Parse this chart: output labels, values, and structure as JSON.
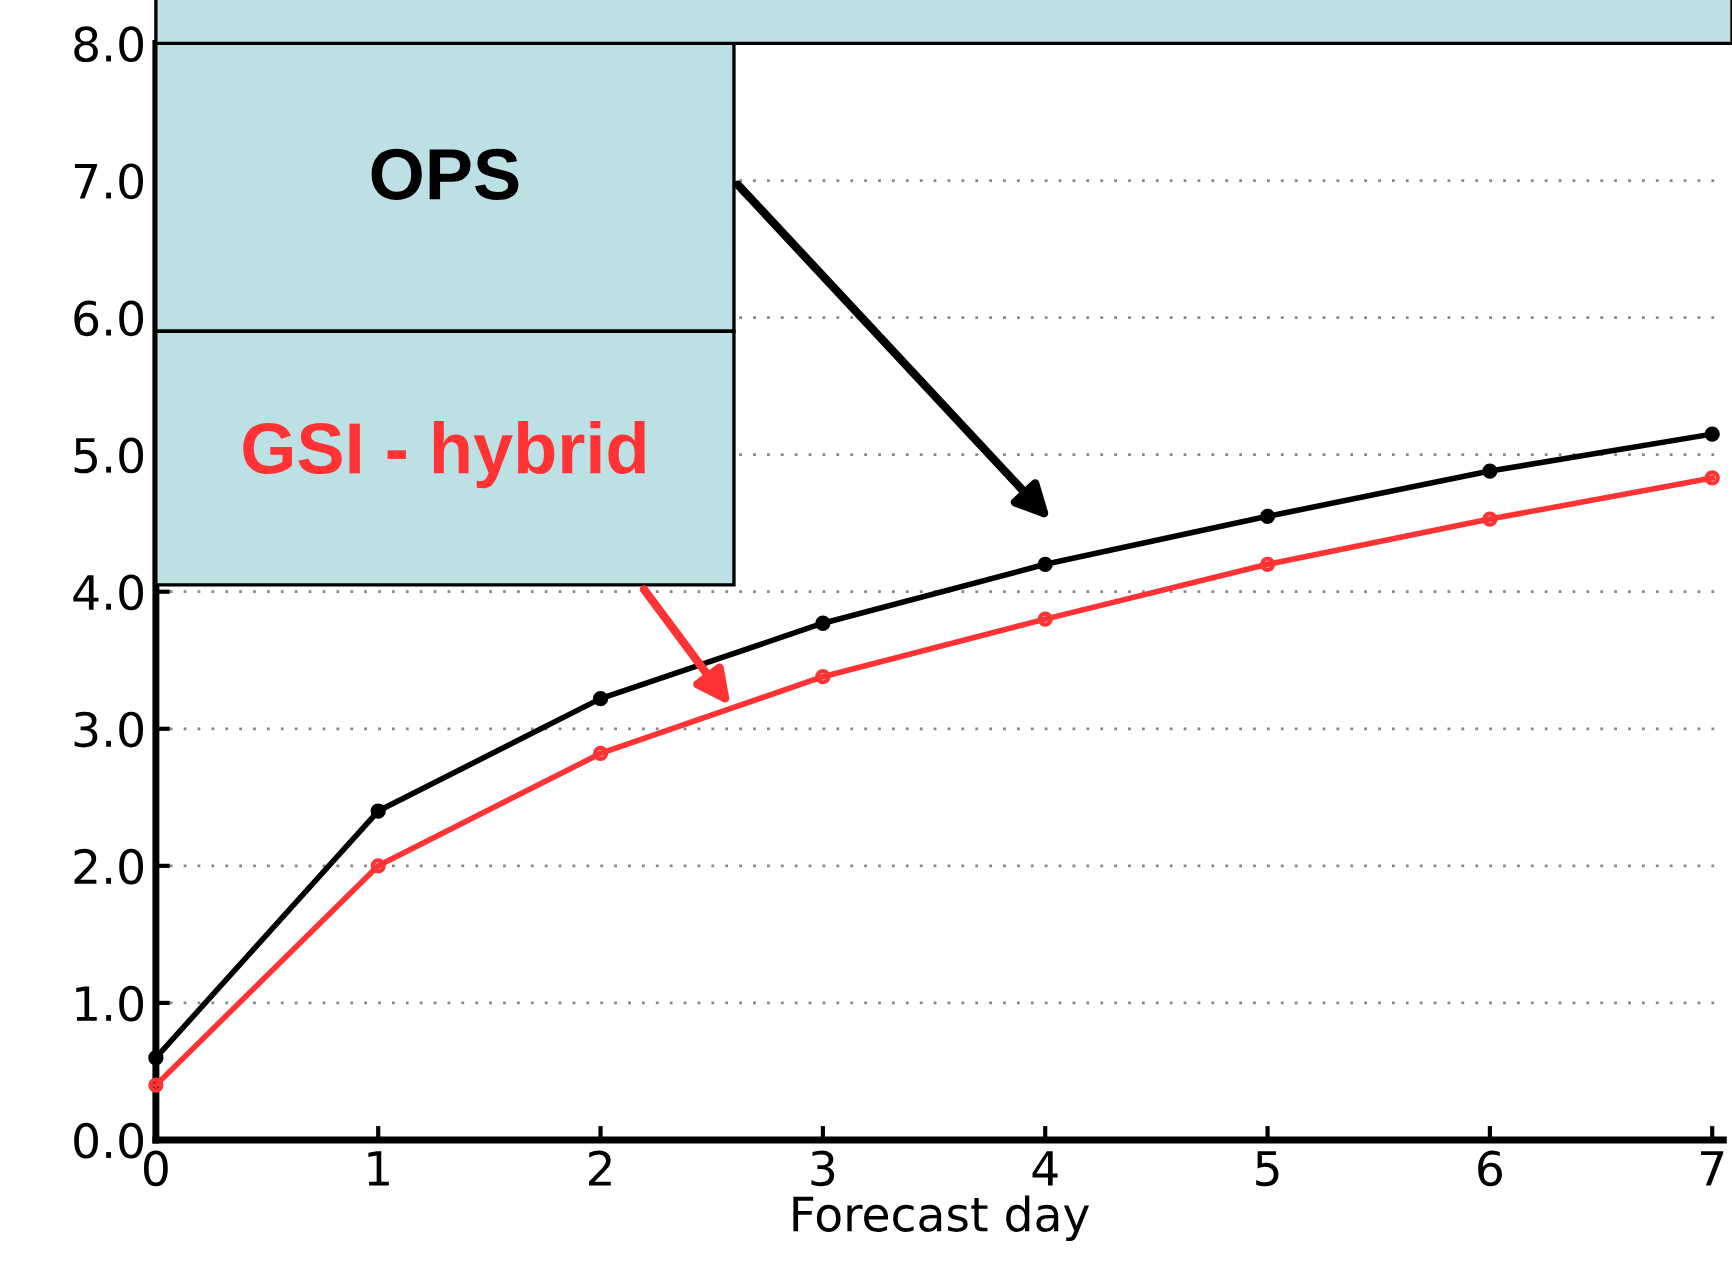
{
  "chart_data": {
    "type": "line",
    "xlabel": "Forecast day",
    "x": [
      0,
      1,
      2,
      3,
      4,
      5,
      6,
      7
    ],
    "series": [
      {
        "name": "OPS",
        "color": "#000000",
        "marker": "circle",
        "values": [
          0.6,
          2.4,
          3.22,
          3.77,
          4.2,
          4.55,
          4.88,
          5.15
        ]
      },
      {
        "name": "GSI - hybrid",
        "color": "#ff3333",
        "marker": "circle",
        "values": [
          0.4,
          2.0,
          2.82,
          3.38,
          3.8,
          4.2,
          4.53,
          4.83
        ]
      }
    ],
    "xlim": [
      0,
      7.05
    ],
    "ylim": [
      0,
      8
    ],
    "xticks": [
      0,
      1,
      2,
      3,
      4,
      5,
      6,
      7
    ],
    "yticks": [
      {
        "value": 0,
        "label": "0.0"
      },
      {
        "value": 1,
        "label": "1.0"
      },
      {
        "value": 2,
        "label": "2.0"
      },
      {
        "value": 3,
        "label": "3.0"
      },
      {
        "value": 4,
        "label": "4.0"
      },
      {
        "value": 5,
        "label": "5.0"
      },
      {
        "value": 6,
        "label": "6.0"
      },
      {
        "value": 7,
        "label": "7.0"
      },
      {
        "value": 8,
        "label": "8.0"
      }
    ],
    "grid": "y",
    "line_style": "solid"
  }
}
